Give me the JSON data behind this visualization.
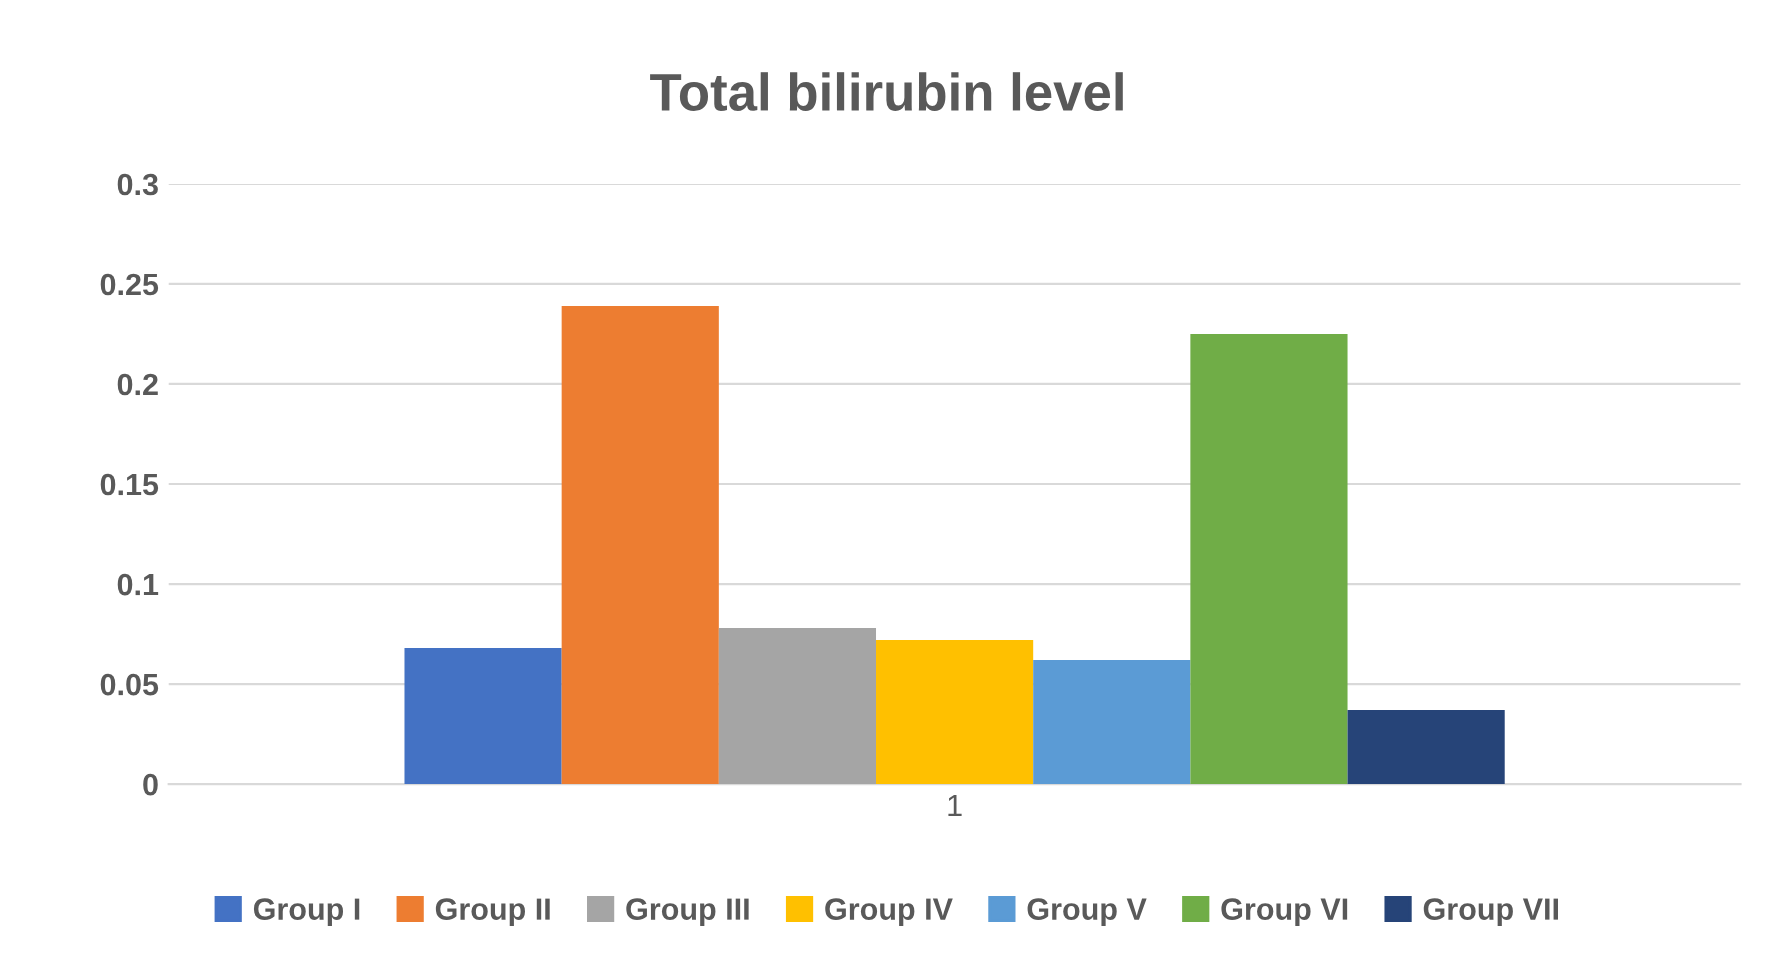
{
  "chart_data": {
    "type": "bar",
    "title": "Total bilirubin level",
    "categories": [
      "1"
    ],
    "series": [
      {
        "name": "Group I",
        "color": "#4472c4",
        "values": [
          0.068
        ]
      },
      {
        "name": "Group II",
        "color": "#ed7d31",
        "values": [
          0.239
        ]
      },
      {
        "name": "Group III",
        "color": "#a5a5a5",
        "values": [
          0.078
        ]
      },
      {
        "name": "Group IV",
        "color": "#ffc000",
        "values": [
          0.072
        ]
      },
      {
        "name": "Group V",
        "color": "#5b9bd5",
        "values": [
          0.062
        ]
      },
      {
        "name": "Group VI",
        "color": "#70ad47",
        "values": [
          0.225
        ]
      },
      {
        "name": "Group VII",
        "color": "#264478",
        "values": [
          0.037
        ]
      }
    ],
    "ylim": [
      0,
      0.3
    ],
    "yticks": [
      {
        "value": 0,
        "label": "0"
      },
      0.05,
      0.1,
      0.15,
      0.2,
      0.25,
      0.3
    ],
    "grid": "y",
    "legend": "bottom"
  }
}
